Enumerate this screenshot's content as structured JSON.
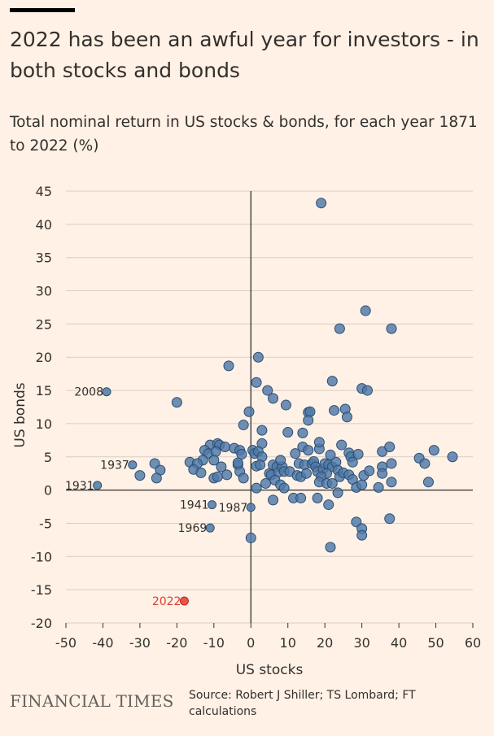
{
  "header": {
    "title": "2022 has been an awful year for investors - in both stocks and bonds",
    "subtitle": "Total nominal return in US stocks & bonds, for each year 1871 to 2022 (%)"
  },
  "footer": {
    "logo": "FINANCIAL TIMES",
    "source": "Source: Robert J Shiller; TS Lombard; FT calculations"
  },
  "chart_data": {
    "type": "scatter",
    "title": "2022 has been an awful year for investors - in both stocks and bonds",
    "subtitle": "Total nominal return in US stocks & bonds, for each year 1871 to 2022 (%)",
    "xlabel": "US stocks",
    "ylabel": "US bonds",
    "xlim": [
      -50,
      60
    ],
    "ylim": [
      -20,
      45
    ],
    "xticks": [
      -50,
      -40,
      -30,
      -20,
      -10,
      0,
      10,
      20,
      30,
      40,
      50,
      60
    ],
    "yticks": [
      -20,
      -15,
      -10,
      -5,
      0,
      5,
      10,
      15,
      20,
      25,
      30,
      35,
      40,
      45
    ],
    "grid": "horizontal",
    "colors": {
      "point": "#4E79A7",
      "point_edge": "#2B4C73",
      "highlight": "#E03C31",
      "grid": "#D9CDC3",
      "zero_axis": "#33302E"
    },
    "labeled_points": [
      {
        "label": "2008",
        "x": -39,
        "y": 14.8
      },
      {
        "label": "1937",
        "x": -32,
        "y": 3.8
      },
      {
        "label": "1931",
        "x": -41.5,
        "y": 0.7
      },
      {
        "label": "1941",
        "x": -10.5,
        "y": -2.2
      },
      {
        "label": "1987",
        "x": 0,
        "y": -2.6
      },
      {
        "label": "1969",
        "x": -11,
        "y": -5.7
      },
      {
        "label": "2022",
        "x": -18,
        "y": -16.7,
        "highlight": true
      }
    ],
    "points": [
      [
        19,
        43.2
      ],
      [
        31,
        27
      ],
      [
        24,
        24.3
      ],
      [
        38,
        24.3
      ],
      [
        2,
        20
      ],
      [
        -6,
        18.7
      ],
      [
        1.5,
        16.2
      ],
      [
        22,
        16.4
      ],
      [
        30,
        15.3
      ],
      [
        31.5,
        15
      ],
      [
        4.5,
        15
      ],
      [
        -20,
        13.2
      ],
      [
        6,
        13.8
      ],
      [
        9.5,
        12.8
      ],
      [
        15.5,
        11.7
      ],
      [
        16,
        11.8
      ],
      [
        15.5,
        10.5
      ],
      [
        22.5,
        12
      ],
      [
        25.5,
        12.2
      ],
      [
        26,
        11
      ],
      [
        -0.5,
        11.8
      ],
      [
        -2,
        9.8
      ],
      [
        3,
        9
      ],
      [
        10,
        8.7
      ],
      [
        14,
        8.6
      ],
      [
        14,
        6.5
      ],
      [
        3,
        7
      ],
      [
        -11,
        6.8
      ],
      [
        -9,
        7
      ],
      [
        -8.5,
        6.8
      ],
      [
        -7,
        6.5
      ],
      [
        -4.5,
        6.3
      ],
      [
        -3,
        6
      ],
      [
        -2.5,
        5.4
      ],
      [
        -12.5,
        6
      ],
      [
        -11.5,
        5.5
      ],
      [
        -9.5,
        5.8
      ],
      [
        -13,
        4.5
      ],
      [
        -10,
        4.5
      ],
      [
        -16.5,
        4.2
      ],
      [
        -14.5,
        4
      ],
      [
        -26,
        4
      ],
      [
        -30,
        2.2
      ],
      [
        -24.5,
        3
      ],
      [
        -25.5,
        1.8
      ],
      [
        -15.5,
        3.1
      ],
      [
        -13.5,
        2.6
      ],
      [
        -8,
        3.5
      ],
      [
        -10,
        1.8
      ],
      [
        -9,
        2
      ],
      [
        -6.5,
        2.3
      ],
      [
        -3.5,
        3.8
      ],
      [
        -3,
        2.8
      ],
      [
        -2,
        1.8
      ],
      [
        -3.5,
        4.1
      ],
      [
        0.5,
        6
      ],
      [
        1,
        5.5
      ],
      [
        2,
        5.8
      ],
      [
        3,
        5
      ],
      [
        1.5,
        3.6
      ],
      [
        2.5,
        3.8
      ],
      [
        5,
        2.5
      ],
      [
        5.5,
        2.3
      ],
      [
        6,
        3.8
      ],
      [
        7,
        3.5
      ],
      [
        7.5,
        2.7
      ],
      [
        8.5,
        3.5
      ],
      [
        8,
        4.5
      ],
      [
        9,
        2.8
      ],
      [
        10.5,
        2.8
      ],
      [
        6.5,
        1.5
      ],
      [
        8,
        0.8
      ],
      [
        9,
        0.3
      ],
      [
        4,
        1
      ],
      [
        1.5,
        0.3
      ],
      [
        12,
        5.5
      ],
      [
        13,
        4
      ],
      [
        14.5,
        3.8
      ],
      [
        12.5,
        2.2
      ],
      [
        13.5,
        2
      ],
      [
        15,
        2.5
      ],
      [
        16.5,
        4
      ],
      [
        17,
        4.3
      ],
      [
        17.5,
        3.5
      ],
      [
        18,
        2.8
      ],
      [
        19.5,
        3.2
      ],
      [
        20,
        4
      ],
      [
        21,
        3.8
      ],
      [
        22,
        3.5
      ],
      [
        23,
        4.2
      ],
      [
        23.5,
        3
      ],
      [
        20.5,
        2.5
      ],
      [
        19,
        2
      ],
      [
        18.5,
        1.2
      ],
      [
        20.5,
        1
      ],
      [
        22,
        1
      ],
      [
        24,
        2
      ],
      [
        25,
        2.6
      ],
      [
        24.5,
        6.8
      ],
      [
        26.5,
        5.6
      ],
      [
        27,
        5
      ],
      [
        27.5,
        4.2
      ],
      [
        29,
        5.4
      ],
      [
        26.5,
        2.3
      ],
      [
        27.5,
        1.6
      ],
      [
        28.5,
        0.4
      ],
      [
        30,
        0.8
      ],
      [
        30.5,
        2.2
      ],
      [
        32,
        2.9
      ],
      [
        35.5,
        5.8
      ],
      [
        35.5,
        3.5
      ],
      [
        35.5,
        2.5
      ],
      [
        37.5,
        6.5
      ],
      [
        38,
        4
      ],
      [
        38,
        1.2
      ],
      [
        34.5,
        0.4
      ],
      [
        45.5,
        4.8
      ],
      [
        47,
        4
      ],
      [
        49.5,
        6
      ],
      [
        48,
        1.2
      ],
      [
        54.5,
        5
      ],
      [
        18.5,
        6.2
      ],
      [
        18.5,
        7.2
      ],
      [
        15.5,
        6
      ],
      [
        21.5,
        5.3
      ],
      [
        6,
        -1.5
      ],
      [
        11.5,
        -1.2
      ],
      [
        13.5,
        -1.2
      ],
      [
        18,
        -1.2
      ],
      [
        21,
        -2.2
      ],
      [
        23.5,
        -0.4
      ],
      [
        28.5,
        -4.8
      ],
      [
        30,
        -5.8
      ],
      [
        30,
        -6.8
      ],
      [
        37.5,
        -4.3
      ],
      [
        0,
        -7.2
      ],
      [
        21.5,
        -8.6
      ]
    ]
  }
}
